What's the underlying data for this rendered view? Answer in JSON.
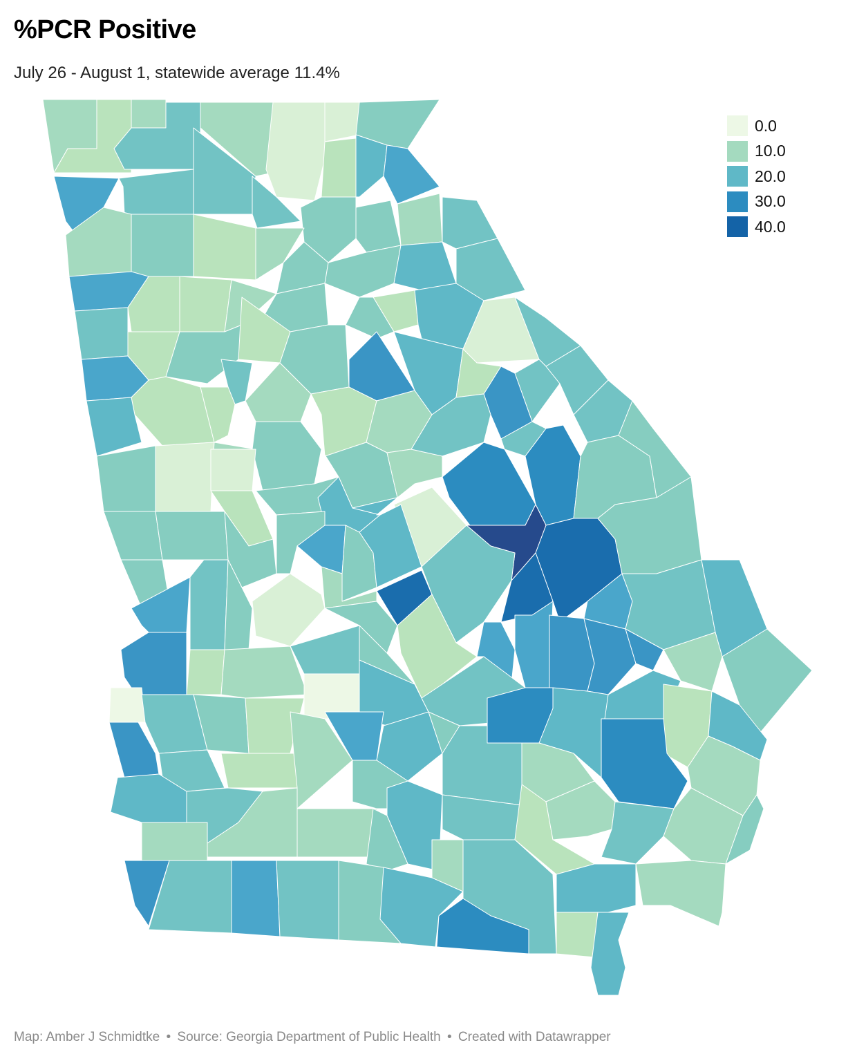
{
  "title": "%PCR Positive",
  "subtitle": "July 26 - August 1, statewide average 11.4%",
  "legend": [
    {
      "label": "0.0",
      "color": "#edf8e6"
    },
    {
      "label": "10.0",
      "color": "#a4dabf"
    },
    {
      "label": "20.0",
      "color": "#5fb8c7"
    },
    {
      "label": "30.0",
      "color": "#2c8cc0"
    },
    {
      "label": "40.0",
      "color": "#1463a7"
    }
  ],
  "footer": {
    "map_credit": "Map: Amber J Schmidtke",
    "separator": "•",
    "source": "Source: Georgia Department of Public Health",
    "created_with": "Created with Datawrapper"
  },
  "map_colors": {
    "palest": "#edf8e6",
    "very_light": "#d9f0d6",
    "light_green": "#b9e3bc",
    "mint": "#a4dabf",
    "teal_light": "#86cdc0",
    "teal": "#72c3c4",
    "blue_teal": "#5fb8c7",
    "blue_light": "#4aa6cb",
    "blue": "#3a95c5",
    "blue_mid": "#2c8cc0",
    "blue_dark": "#1a6dad",
    "navy": "#264a8c"
  }
}
